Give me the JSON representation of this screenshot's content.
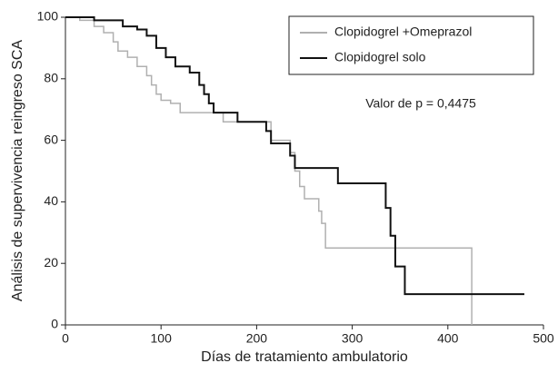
{
  "chart_data": {
    "type": "step",
    "xlabel": "Días de tratamiento ambulatorio",
    "ylabel": "Análisis de supervivencia reingreso SCA",
    "annotation": "Valor de p = 0,4475",
    "xlim": [
      0,
      500
    ],
    "xticks": [
      0,
      100,
      200,
      300,
      400,
      500
    ],
    "ylim": [
      0,
      100
    ],
    "yticks": [
      0,
      20,
      40,
      60,
      80,
      100
    ],
    "series": [
      {
        "name": "Clopidogrel +Omeprazol",
        "color": "#b0b0b0",
        "x": [
          0,
          15,
          30,
          40,
          50,
          55,
          65,
          75,
          85,
          90,
          95,
          100,
          110,
          120,
          165,
          215,
          235,
          240,
          245,
          250,
          265,
          268,
          272,
          425
        ],
        "values": [
          100,
          99,
          97,
          95,
          92,
          89,
          87,
          84,
          81,
          78,
          75,
          73,
          72,
          69,
          66,
          60,
          56,
          50,
          45,
          41,
          37,
          33,
          25,
          0
        ]
      },
      {
        "name": "Clopidogrel solo",
        "color": "#111111",
        "x": [
          0,
          30,
          60,
          75,
          85,
          95,
          105,
          115,
          130,
          140,
          145,
          150,
          155,
          180,
          210,
          215,
          235,
          240,
          285,
          335,
          340,
          345,
          355,
          480
        ],
        "values": [
          100,
          99,
          97,
          96,
          94,
          90,
          87,
          84,
          82,
          78,
          75,
          72,
          69,
          66,
          63,
          59,
          55,
          51,
          46,
          38,
          29,
          19,
          10,
          10
        ]
      }
    ]
  }
}
